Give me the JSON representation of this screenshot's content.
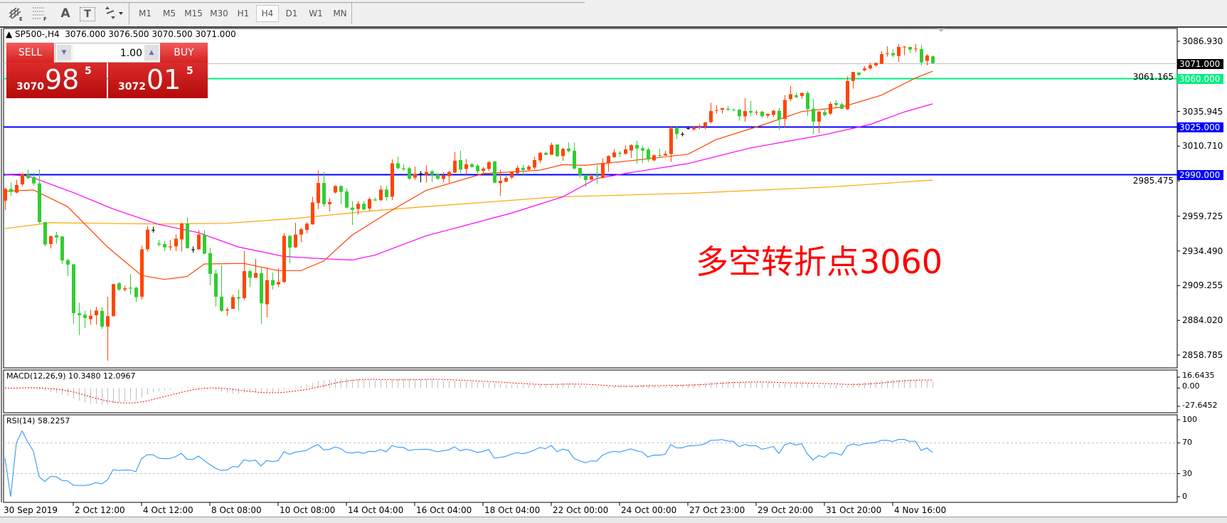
{
  "toolbar": {
    "icons": [
      "chart-expert-icon",
      "grid-icon",
      "text-icon",
      "text-label-icon",
      "arrows-icon"
    ],
    "icon_glyphs": {
      "text": "A",
      "label": "T"
    },
    "timeframes": [
      "M1",
      "M5",
      "M15",
      "M30",
      "H1",
      "H4",
      "D1",
      "W1",
      "MN"
    ],
    "active_timeframe": "H4"
  },
  "chart": {
    "header": "▲ SP500-,H4  3076.000 3076.500 3070.500 3071.000",
    "symbol": "SP500-",
    "period": "H4",
    "ohlc": {
      "open": "3076.000",
      "high": "3076.500",
      "low": "3070.500",
      "close": "3071.000"
    },
    "price_ticks": [
      "3086.930",
      "3061.165",
      "3035.945",
      "3010.710",
      "2985.475",
      "2959.725",
      "2934.490",
      "2909.255",
      "2884.020",
      "2858.785"
    ],
    "price_range": [
      2858.785,
      3086.93
    ],
    "levels": [
      {
        "value": 3071.0,
        "label": "3071.000",
        "color": "#c0c0c0",
        "tag_bg": "#000000",
        "tag_fg": "#ffffff"
      },
      {
        "value": 3060.0,
        "label": "3060.000",
        "color": "#00f080",
        "tag_bg": "#00f080",
        "tag_fg": "#ffffff"
      },
      {
        "value": 3025.0,
        "label": "3025.000",
        "color": "#0000ff",
        "tag_bg": "#0000ff",
        "tag_fg": "#ffffff"
      },
      {
        "value": 2990.0,
        "label": "2990.000",
        "color": "#0000ff",
        "tag_bg": "#0000ff",
        "tag_fg": "#ffffff"
      }
    ],
    "colors": {
      "bull": "#ff4500",
      "bear": "#32cd32",
      "doji": "#000000",
      "ma_fast": "#ff4500",
      "ma_mid": "#ff00ff",
      "ma_slow": "#ffa500"
    },
    "annotation": "多空转折点3060",
    "time_labels": [
      {
        "bar": 0,
        "label": "30 Sep 2019"
      },
      {
        "bar": 12,
        "label": "2 Oct 12:00"
      },
      {
        "bar": 24,
        "label": "4 Oct 12:00"
      },
      {
        "bar": 36,
        "label": "8 Oct 08:00"
      },
      {
        "bar": 48,
        "label": "10 Oct 08:00"
      },
      {
        "bar": 60,
        "label": "14 Oct 04:00"
      },
      {
        "bar": 72,
        "label": "16 Oct 04:00"
      },
      {
        "bar": 84,
        "label": "18 Oct 04:00"
      },
      {
        "bar": 96,
        "label": "22 Oct 00:00"
      },
      {
        "bar": 108,
        "label": "24 Oct 00:00"
      },
      {
        "bar": 120,
        "label": "27 Oct 23:00"
      },
      {
        "bar": 132,
        "label": "29 Oct 20:00"
      },
      {
        "bar": 144,
        "label": "31 Oct 20:00"
      },
      {
        "bar": 156,
        "label": "4 Nov 16:00"
      }
    ],
    "candles": [
      [
        2971.0,
        2980.5,
        2964.1,
        2979.6
      ],
      [
        2979.6,
        2984.3,
        2974.4,
        2977.4
      ],
      [
        2977.0,
        2986.3,
        2976.2,
        2982.5
      ],
      [
        2982.9,
        2991.2,
        2981.3,
        2990.5
      ],
      [
        2990.0,
        2993.6,
        2987.0,
        2987.4
      ],
      [
        2988.2,
        2991.2,
        2981.9,
        2983.6
      ],
      [
        2983.6,
        2993.6,
        2954.3,
        2955.5
      ],
      [
        2955.5,
        2955.5,
        2937.8,
        2939.2
      ],
      [
        2939.5,
        2945.3,
        2936.4,
        2945.3
      ],
      [
        2946.0,
        2948.4,
        2939.8,
        2944.3
      ],
      [
        2945.0,
        2945.3,
        2925.0,
        2927.6
      ],
      [
        2927.8,
        2929.1,
        2916.2,
        2924.5
      ],
      [
        2924.8,
        2924.8,
        2881.4,
        2889.2
      ],
      [
        2889.2,
        2896.9,
        2873.3,
        2887.8
      ],
      [
        2888.1,
        2890.9,
        2878.5,
        2885.7
      ],
      [
        2884.9,
        2891.7,
        2880.9,
        2887.4
      ],
      [
        2887.8,
        2893.8,
        2880.9,
        2891.2
      ],
      [
        2890.9,
        2893.8,
        2877.8,
        2879.5
      ],
      [
        2879.5,
        2901.2,
        2854.7,
        2887.1
      ],
      [
        2887.1,
        2910.4,
        2886.8,
        2910.4
      ],
      [
        2911.0,
        2911.9,
        2905.5,
        2906.4
      ],
      [
        2906.4,
        2909.3,
        2905.0,
        2907.3
      ],
      [
        2907.8,
        2917.6,
        2902.6,
        2907.1
      ],
      [
        2907.8,
        2908.5,
        2897.4,
        2900.9
      ],
      [
        2901.2,
        2938.3,
        2899.2,
        2935.7
      ],
      [
        2935.7,
        2952.6,
        2934.0,
        2950.0
      ],
      [
        2949.8,
        2952.1,
        2947.8,
        2949.8
      ],
      [
        2940.0,
        2942.6,
        2937.8,
        2939.2
      ],
      [
        2939.5,
        2941.9,
        2934.3,
        2937.1
      ],
      [
        2937.1,
        2942.6,
        2934.8,
        2937.8
      ],
      [
        2937.8,
        2946.5,
        2934.3,
        2943.4
      ],
      [
        2942.9,
        2955.0,
        2934.0,
        2954.3
      ],
      [
        2954.3,
        2958.9,
        2936.4,
        2936.4
      ],
      [
        2935.7,
        2937.8,
        2933.3,
        2935.7
      ],
      [
        2935.7,
        2949.5,
        2935.0,
        2946.4
      ],
      [
        2946.0,
        2949.5,
        2931.9,
        2932.6
      ],
      [
        2932.9,
        2936.9,
        2909.5,
        2917.8
      ],
      [
        2918.1,
        2921.2,
        2894.0,
        2901.2
      ],
      [
        2901.2,
        2924.3,
        2890.0,
        2890.9
      ],
      [
        2891.2,
        2893.5,
        2887.4,
        2891.9
      ],
      [
        2892.4,
        2902.6,
        2892.3,
        2900.9
      ],
      [
        2900.9,
        2906.4,
        2891.2,
        2899.9
      ],
      [
        2900.2,
        2934.3,
        2898.7,
        2919.8
      ],
      [
        2919.8,
        2921.0,
        2908.1,
        2915.0
      ],
      [
        2915.0,
        2928.8,
        2915.0,
        2918.4
      ],
      [
        2918.4,
        2922.8,
        2881.4,
        2896.4
      ],
      [
        2895.7,
        2922.3,
        2886.1,
        2913.3
      ],
      [
        2913.3,
        2918.8,
        2906.4,
        2909.5
      ],
      [
        2910.2,
        2921.9,
        2908.1,
        2911.9
      ],
      [
        2911.9,
        2947.4,
        2910.9,
        2945.5
      ],
      [
        2945.5,
        2946.0,
        2925.4,
        2936.9
      ],
      [
        2937.1,
        2955.0,
        2936.6,
        2946.4
      ],
      [
        2946.4,
        2951.2,
        2940.9,
        2950.3
      ],
      [
        2949.8,
        2955.3,
        2947.4,
        2954.3
      ],
      [
        2953.8,
        2973.9,
        2953.6,
        2969.8
      ],
      [
        2969.3,
        2993.1,
        2965.0,
        2983.9
      ],
      [
        2983.9,
        2992.0,
        2966.7,
        2968.4
      ],
      [
        2968.4,
        2972.7,
        2963.3,
        2970.1
      ],
      [
        2977.0,
        2982.2,
        2976.3,
        2981.7
      ],
      [
        2981.7,
        2982.2,
        2968.4,
        2977.4
      ],
      [
        2977.7,
        2980.1,
        2965.3,
        2966.0
      ],
      [
        2966.0,
        2970.8,
        2953.3,
        2964.3
      ],
      [
        2965.0,
        2970.8,
        2960.7,
        2968.8
      ],
      [
        2968.8,
        2970.8,
        2964.1,
        2964.6
      ],
      [
        2965.3,
        2973.6,
        2963.3,
        2972.2
      ],
      [
        2971.9,
        2973.3,
        2970.8,
        2971.2
      ],
      [
        2971.4,
        2982.2,
        2970.8,
        2979.1
      ],
      [
        2979.1,
        2981.9,
        2971.0,
        2973.6
      ],
      [
        2973.9,
        3001.2,
        2971.5,
        2998.2
      ],
      [
        2998.2,
        3002.9,
        2993.9,
        2994.6
      ],
      [
        2994.6,
        2997.7,
        2992.6,
        2993.9
      ],
      [
        2994.6,
        2995.7,
        2986.3,
        2987.0
      ],
      [
        2987.7,
        2995.7,
        2986.0,
        2990.5
      ],
      [
        2990.8,
        2992.6,
        2984.3,
        2990.8
      ],
      [
        2989.8,
        2997.0,
        2984.1,
        2991.9
      ],
      [
        2992.4,
        2993.7,
        2984.6,
        2989.8
      ],
      [
        2990.1,
        2990.7,
        2986.4,
        2986.9
      ],
      [
        2986.9,
        2991.9,
        2984.6,
        2989.3
      ],
      [
        2988.9,
        2992.7,
        2984.1,
        2991.9
      ],
      [
        2991.5,
        3006.4,
        2991.0,
        3000.1
      ],
      [
        3000.6,
        3007.3,
        2991.0,
        2993.6
      ],
      [
        2994.1,
        3001.3,
        2989.8,
        2997.5
      ],
      [
        2997.5,
        2998.4,
        2994.9,
        2995.5
      ],
      [
        2996.5,
        2997.9,
        2991.0,
        2992.4
      ],
      [
        2992.7,
        2995.5,
        2988.9,
        2994.4
      ],
      [
        2994.1,
        3000.0,
        2992.7,
        2998.9
      ],
      [
        2999.6,
        3000.1,
        2983.8,
        2984.1
      ],
      [
        2983.8,
        2993.7,
        2974.4,
        2985.5
      ],
      [
        2984.8,
        2988.9,
        2984.5,
        2987.6
      ],
      [
        2987.9,
        2992.4,
        2986.9,
        2991.7
      ],
      [
        2991.0,
        2996.7,
        2990.7,
        2994.9
      ],
      [
        2994.9,
        2997.2,
        2988.9,
        2993.4
      ],
      [
        2993.6,
        2997.0,
        2992.7,
        2995.8
      ],
      [
        2995.1,
        3003.0,
        2993.7,
        3000.6
      ],
      [
        3000.3,
        3006.4,
        2998.2,
        3005.8
      ],
      [
        3005.8,
        3006.4,
        3004.0,
        3004.4
      ],
      [
        3004.4,
        3013.3,
        3004.4,
        3011.6
      ],
      [
        3011.9,
        3011.9,
        3003.0,
        3003.3
      ],
      [
        3003.5,
        3009.5,
        3000.1,
        3008.7
      ],
      [
        3009.0,
        3013.3,
        3006.1,
        3007.0
      ],
      [
        3007.3,
        3013.3,
        2993.6,
        2994.4
      ],
      [
        2994.9,
        2994.9,
        2987.6,
        2989.8
      ],
      [
        2989.8,
        2989.8,
        2981.2,
        2986.0
      ],
      [
        2986.4,
        2990.7,
        2985.9,
        2988.9
      ],
      [
        2989.8,
        2996.7,
        2983.4,
        2988.6
      ],
      [
        2987.6,
        3001.8,
        2987.2,
        2998.5
      ],
      [
        2998.2,
        3004.0,
        2992.0,
        3003.5
      ],
      [
        3002.7,
        3008.7,
        3002.3,
        3006.1
      ],
      [
        3005.8,
        3007.0,
        3002.7,
        3005.1
      ],
      [
        3005.1,
        3011.2,
        3004.4,
        3008.3
      ],
      [
        3007.5,
        3012.1,
        3002.1,
        3011.4
      ],
      [
        3011.6,
        3014.7,
        2998.0,
        3009.0
      ],
      [
        3009.2,
        3010.9,
        2998.4,
        3007.5
      ],
      [
        3008.2,
        3009.5,
        2999.2,
        3001.0
      ],
      [
        3000.3,
        3004.7,
        2999.9,
        3004.0
      ],
      [
        3004.2,
        3008.7,
        3002.3,
        3003.9
      ],
      [
        3003.9,
        3007.3,
        3003.7,
        3005.1
      ],
      [
        3005.1,
        3025.3,
        2999.2,
        3023.6
      ],
      [
        3024.3,
        3025.0,
        3015.7,
        3019.5
      ],
      [
        3019.5,
        3020.9,
        3017.8,
        3019.5
      ],
      [
        3023.8,
        3025.0,
        3022.6,
        3023.8
      ],
      [
        3022.9,
        3025.4,
        3021.9,
        3024.5
      ],
      [
        3024.3,
        3026.4,
        3022.9,
        3025.4
      ],
      [
        3024.7,
        3028.0,
        3022.9,
        3028.0
      ],
      [
        3028.2,
        3042.1,
        3027.1,
        3036.2
      ],
      [
        3036.5,
        3040.4,
        3034.4,
        3036.9
      ],
      [
        3037.1,
        3038.4,
        3034.4,
        3038.4
      ],
      [
        3037.9,
        3039.8,
        3036.4,
        3037.1
      ],
      [
        3037.2,
        3038.1,
        3036.0,
        3036.9
      ],
      [
        3037.2,
        3037.6,
        3029.2,
        3032.4
      ],
      [
        3032.4,
        3045.6,
        3028.5,
        3036.2
      ],
      [
        3036.2,
        3043.7,
        3032.4,
        3035.0
      ],
      [
        3035.1,
        3036.9,
        3033.2,
        3035.5
      ],
      [
        3035.8,
        3036.2,
        3031.3,
        3032.4
      ],
      [
        3032.9,
        3034.4,
        3031.3,
        3034.1
      ],
      [
        3033.4,
        3037.2,
        3031.7,
        3036.4
      ],
      [
        3036.4,
        3038.4,
        3022.4,
        3030.3
      ],
      [
        3030.6,
        3047.7,
        3024.3,
        3044.2
      ],
      [
        3044.9,
        3054.6,
        3043.3,
        3048.4
      ],
      [
        3047.7,
        3049.4,
        3045.6,
        3046.3
      ],
      [
        3047.2,
        3049.4,
        3045.1,
        3049.4
      ],
      [
        3049.4,
        3050.8,
        3032.7,
        3037.6
      ],
      [
        3037.9,
        3045.2,
        3019.3,
        3028.5
      ],
      [
        3028.5,
        3036.4,
        3020.3,
        3035.8
      ],
      [
        3035.5,
        3037.9,
        3032.4,
        3033.2
      ],
      [
        3034.3,
        3043.1,
        3033.4,
        3041.4
      ],
      [
        3042.1,
        3044.2,
        3039.0,
        3040.7
      ],
      [
        3041.1,
        3042.5,
        3037.6,
        3037.9
      ],
      [
        3037.6,
        3061.3,
        3036.9,
        3058.1
      ],
      [
        3058.1,
        3064.6,
        3052.5,
        3064.6
      ],
      [
        3064.2,
        3064.4,
        3061.6,
        3062.6
      ],
      [
        3065.8,
        3068.9,
        3065.1,
        3067.2
      ],
      [
        3067.2,
        3071.2,
        3066.5,
        3069.6
      ],
      [
        3069.4,
        3071.4,
        3068.4,
        3071.2
      ],
      [
        3070.5,
        3079.7,
        3070.3,
        3077.6
      ],
      [
        3077.6,
        3083.4,
        3075.9,
        3078.1
      ],
      [
        3078.3,
        3081.1,
        3075.2,
        3076.7
      ],
      [
        3076.2,
        3084.9,
        3072.0,
        3082.8
      ],
      [
        3082.5,
        3083.5,
        3076.7,
        3083.0
      ],
      [
        3082.8,
        3082.8,
        3078.3,
        3080.9
      ],
      [
        3081.1,
        3084.9,
        3079.0,
        3081.6
      ],
      [
        3081.3,
        3084.2,
        3069.4,
        3071.5
      ],
      [
        3072.7,
        3077.6,
        3069.4,
        3076.6
      ],
      [
        3076.0,
        3076.5,
        3070.5,
        3071.0
      ]
    ],
    "ma_fast": [
      [
        0,
        2977.9
      ],
      [
        5,
        2978.8
      ],
      [
        11,
        2966.7
      ],
      [
        18,
        2937.4
      ],
      [
        24,
        2916.7
      ],
      [
        28,
        2913.8
      ],
      [
        32,
        2915.9
      ],
      [
        35,
        2925.0
      ],
      [
        42,
        2925.4
      ],
      [
        48,
        2920.2
      ],
      [
        52,
        2920.2
      ],
      [
        56,
        2927.1
      ],
      [
        61,
        2946.0
      ],
      [
        68,
        2964.1
      ],
      [
        74,
        2978.5
      ],
      [
        84,
        2990.7
      ],
      [
        94,
        2993.2
      ],
      [
        98,
        2997.2
      ],
      [
        102,
        2996.7
      ],
      [
        110,
        3000.1
      ],
      [
        120,
        3004.8
      ],
      [
        125,
        3015.5
      ],
      [
        133,
        3025.9
      ],
      [
        140,
        3035.8
      ],
      [
        147,
        3039.0
      ],
      [
        154,
        3047.7
      ],
      [
        160,
        3060.2
      ],
      [
        163,
        3065.1
      ]
    ],
    "ma_mid": [
      [
        0,
        2990.0
      ],
      [
        4,
        2989.1
      ],
      [
        12,
        2977.0
      ],
      [
        19,
        2965.0
      ],
      [
        27,
        2953.8
      ],
      [
        34,
        2947.8
      ],
      [
        41,
        2937.4
      ],
      [
        49,
        2930.5
      ],
      [
        56,
        2928.8
      ],
      [
        61,
        2927.9
      ],
      [
        65,
        2931.4
      ],
      [
        74,
        2945.5
      ],
      [
        89,
        2962.0
      ],
      [
        98,
        2973.8
      ],
      [
        104,
        2987.2
      ],
      [
        110,
        2991.5
      ],
      [
        120,
        2998.0
      ],
      [
        131,
        3009.4
      ],
      [
        144,
        3019.0
      ],
      [
        152,
        3026.4
      ],
      [
        158,
        3035.5
      ],
      [
        163,
        3041.4
      ]
    ],
    "ma_slow": [
      [
        0,
        2950.7
      ],
      [
        8,
        2955.0
      ],
      [
        27,
        2954.1
      ],
      [
        39,
        2954.6
      ],
      [
        51,
        2958.1
      ],
      [
        65,
        2963.8
      ],
      [
        74,
        2966.7
      ],
      [
        97,
        2973.8
      ],
      [
        120,
        2976.4
      ],
      [
        145,
        2981.0
      ],
      [
        163,
        2986.0
      ]
    ]
  },
  "macd": {
    "label": "MACD(12,26,9) 10.3480 12.0967",
    "ticks": [
      "16.6435",
      "0.00",
      "-27.6452"
    ],
    "range": [
      -27.6452,
      16.6435
    ],
    "hist_color": "#c0c0c0",
    "signal_color": "#ff0000"
  },
  "rsi": {
    "label": "RSI(14) 58.2257",
    "ticks": [
      "100",
      "70",
      "30",
      "0"
    ],
    "levels": [
      70,
      30
    ],
    "line_color": "#1e90ff"
  },
  "trade_panel": {
    "sell_label": "SELL",
    "buy_label": "BUY",
    "lot": "1.00",
    "sell_price": {
      "prefix": "3070",
      "big": "98",
      "sup": "5"
    },
    "buy_price": {
      "prefix": "3072",
      "big": "01",
      "sup": "5"
    }
  }
}
